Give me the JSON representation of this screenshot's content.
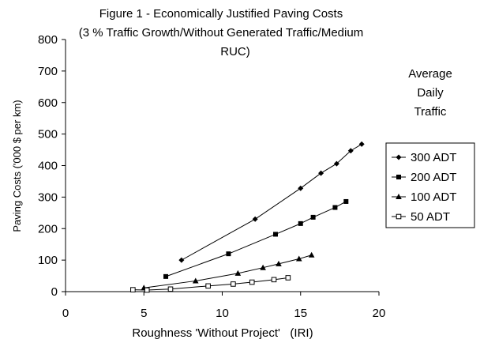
{
  "chart_data": {
    "type": "line",
    "title_lines": [
      "Figure 1 - Economically Justified Paving Costs",
      "(3 % Traffic Growth/Without Generated Traffic/Medium",
      "RUC)"
    ],
    "xlabel": "Roughness 'Without Project'   (IRI)",
    "ylabel": "Paving Costs ('000 $ per km)",
    "xlim": [
      0,
      20
    ],
    "ylim": [
      0,
      800
    ],
    "xticks": [
      0,
      5,
      10,
      15,
      20
    ],
    "yticks": [
      0,
      100,
      200,
      300,
      400,
      500,
      600,
      700,
      800
    ],
    "grid": false,
    "legend_title_lines": [
      "Average",
      "Daily",
      "Traffic"
    ],
    "legend_position": "right",
    "series": [
      {
        "name": "300 ADT",
        "marker": "diamond",
        "x": [
          7.4,
          12.1,
          15.0,
          16.3,
          17.3,
          18.2,
          18.9
        ],
        "y": [
          100,
          230,
          328,
          376,
          406,
          447,
          468
        ]
      },
      {
        "name": "200 ADT",
        "marker": "square",
        "x": [
          6.4,
          10.4,
          13.4,
          15.0,
          15.8,
          17.2,
          17.9
        ],
        "y": [
          48,
          120,
          182,
          216,
          236,
          267,
          286
        ]
      },
      {
        "name": "100 ADT",
        "marker": "triangle",
        "x": [
          5.0,
          8.3,
          11.0,
          12.6,
          13.6,
          14.9,
          15.7
        ],
        "y": [
          12,
          34,
          58,
          76,
          88,
          104,
          116
        ]
      },
      {
        "name": "50 ADT",
        "marker": "open-square",
        "x": [
          4.3,
          5.2,
          6.7,
          9.1,
          10.7,
          11.9,
          13.3,
          14.2
        ],
        "y": [
          6,
          5,
          8,
          18,
          24,
          30,
          38,
          44
        ]
      }
    ]
  }
}
